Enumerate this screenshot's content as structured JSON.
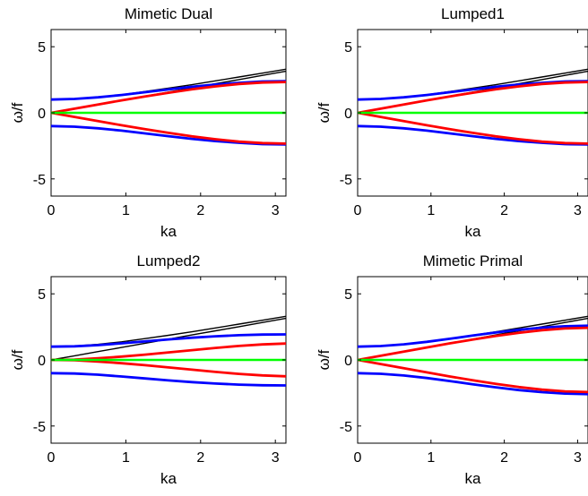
{
  "chart_data": [
    {
      "type": "line",
      "title": "Mimetic Dual",
      "xlabel": "ka",
      "ylabel": "ω/f",
      "xlim": [
        0,
        3.1416
      ],
      "ylim": [
        -6.3,
        6.3
      ],
      "xticks": [
        0,
        1,
        2,
        3
      ],
      "yticks": [
        -5,
        0,
        5
      ],
      "grid": false,
      "x": [
        0,
        0.314,
        0.628,
        0.942,
        1.257,
        1.571,
        1.885,
        2.199,
        2.513,
        2.827,
        3.142
      ],
      "series": [
        {
          "color": "#000000",
          "values": [
            1.0,
            1.05,
            1.18,
            1.37,
            1.61,
            1.86,
            2.13,
            2.42,
            2.71,
            3.0,
            3.3
          ]
        },
        {
          "color": "#000000",
          "values": [
            0,
            0.31,
            0.63,
            0.94,
            1.26,
            1.57,
            1.89,
            2.2,
            2.51,
            2.83,
            3.14
          ]
        },
        {
          "color": "#0000ff",
          "values": [
            1.0,
            1.05,
            1.17,
            1.35,
            1.56,
            1.77,
            1.97,
            2.14,
            2.27,
            2.37,
            2.4
          ]
        },
        {
          "color": "#0000ff",
          "values": [
            -1.0,
            -1.05,
            -1.17,
            -1.35,
            -1.56,
            -1.77,
            -1.97,
            -2.14,
            -2.27,
            -2.37,
            -2.4
          ]
        },
        {
          "color": "#ff0000",
          "values": [
            0,
            0.31,
            0.63,
            0.94,
            1.24,
            1.52,
            1.78,
            2.0,
            2.18,
            2.29,
            2.33
          ]
        },
        {
          "color": "#ff0000",
          "values": [
            0,
            -0.31,
            -0.63,
            -0.94,
            -1.24,
            -1.52,
            -1.78,
            -2.0,
            -2.18,
            -2.29,
            -2.33
          ]
        },
        {
          "color": "#00ff00",
          "values": [
            0,
            0,
            0,
            0,
            0,
            0,
            0,
            0,
            0,
            0,
            0
          ]
        }
      ]
    },
    {
      "type": "line",
      "title": "Lumped1",
      "xlabel": "ka",
      "ylabel": "ω/f",
      "xlim": [
        0,
        3.1416
      ],
      "ylim": [
        -6.3,
        6.3
      ],
      "xticks": [
        0,
        1,
        2,
        3
      ],
      "yticks": [
        -5,
        0,
        5
      ],
      "grid": false,
      "x": [
        0,
        0.314,
        0.628,
        0.942,
        1.257,
        1.571,
        1.885,
        2.199,
        2.513,
        2.827,
        3.142
      ],
      "series": [
        {
          "color": "#000000",
          "values": [
            1.0,
            1.05,
            1.18,
            1.37,
            1.61,
            1.86,
            2.13,
            2.42,
            2.71,
            3.0,
            3.3
          ]
        },
        {
          "color": "#000000",
          "values": [
            0,
            0.31,
            0.63,
            0.94,
            1.26,
            1.57,
            1.89,
            2.2,
            2.51,
            2.83,
            3.14
          ]
        },
        {
          "color": "#0000ff",
          "values": [
            1.0,
            1.05,
            1.17,
            1.35,
            1.56,
            1.77,
            1.97,
            2.14,
            2.27,
            2.37,
            2.4
          ]
        },
        {
          "color": "#0000ff",
          "values": [
            -1.0,
            -1.05,
            -1.17,
            -1.35,
            -1.56,
            -1.77,
            -1.97,
            -2.14,
            -2.27,
            -2.37,
            -2.4
          ]
        },
        {
          "color": "#ff0000",
          "values": [
            0,
            0.31,
            0.63,
            0.94,
            1.24,
            1.52,
            1.78,
            2.0,
            2.18,
            2.29,
            2.33
          ]
        },
        {
          "color": "#ff0000",
          "values": [
            0,
            -0.31,
            -0.63,
            -0.94,
            -1.24,
            -1.52,
            -1.78,
            -2.0,
            -2.18,
            -2.29,
            -2.33
          ]
        },
        {
          "color": "#00ff00",
          "values": [
            0,
            0,
            0,
            0,
            0,
            0,
            0,
            0,
            0,
            0,
            0
          ]
        }
      ]
    },
    {
      "type": "line",
      "title": "Lumped2",
      "xlabel": "ka",
      "ylabel": "ω/f",
      "xlim": [
        0,
        3.1416
      ],
      "ylim": [
        -6.3,
        6.3
      ],
      "xticks": [
        0,
        1,
        2,
        3
      ],
      "yticks": [
        -5,
        0,
        5
      ],
      "grid": false,
      "x": [
        0,
        0.314,
        0.628,
        0.942,
        1.257,
        1.571,
        1.885,
        2.199,
        2.513,
        2.827,
        3.142
      ],
      "series": [
        {
          "color": "#000000",
          "values": [
            1.0,
            1.05,
            1.18,
            1.37,
            1.61,
            1.86,
            2.13,
            2.42,
            2.71,
            3.0,
            3.3
          ]
        },
        {
          "color": "#000000",
          "values": [
            0,
            0.31,
            0.63,
            0.94,
            1.26,
            1.57,
            1.89,
            2.2,
            2.51,
            2.83,
            3.14
          ]
        },
        {
          "color": "#0000ff",
          "values": [
            1.0,
            1.03,
            1.12,
            1.25,
            1.4,
            1.55,
            1.68,
            1.79,
            1.87,
            1.92,
            1.93
          ]
        },
        {
          "color": "#0000ff",
          "values": [
            -1.0,
            -1.03,
            -1.12,
            -1.25,
            -1.4,
            -1.55,
            -1.68,
            -1.79,
            -1.87,
            -1.92,
            -1.93
          ]
        },
        {
          "color": "#ff0000",
          "values": [
            0,
            0.03,
            0.12,
            0.25,
            0.4,
            0.57,
            0.74,
            0.91,
            1.06,
            1.17,
            1.24
          ]
        },
        {
          "color": "#ff0000",
          "values": [
            0,
            -0.03,
            -0.12,
            -0.25,
            -0.4,
            -0.57,
            -0.74,
            -0.91,
            -1.06,
            -1.17,
            -1.24
          ]
        },
        {
          "color": "#00ff00",
          "values": [
            0,
            0,
            0,
            0,
            0,
            0,
            0,
            0,
            0,
            0,
            0
          ]
        }
      ]
    },
    {
      "type": "line",
      "title": "Mimetic Primal",
      "xlabel": "ka",
      "ylabel": "ω/f",
      "xlim": [
        0,
        3.1416
      ],
      "ylim": [
        -6.3,
        6.3
      ],
      "xticks": [
        0,
        1,
        2,
        3
      ],
      "yticks": [
        -5,
        0,
        5
      ],
      "grid": false,
      "x": [
        0,
        0.314,
        0.628,
        0.942,
        1.257,
        1.571,
        1.885,
        2.199,
        2.513,
        2.827,
        3.142
      ],
      "series": [
        {
          "color": "#000000",
          "values": [
            1.0,
            1.05,
            1.18,
            1.37,
            1.61,
            1.86,
            2.13,
            2.42,
            2.71,
            3.0,
            3.3
          ]
        },
        {
          "color": "#000000",
          "values": [
            0,
            0.31,
            0.63,
            0.94,
            1.26,
            1.57,
            1.89,
            2.2,
            2.51,
            2.83,
            3.14
          ]
        },
        {
          "color": "#0000ff",
          "values": [
            1.0,
            1.05,
            1.18,
            1.37,
            1.6,
            1.84,
            2.07,
            2.28,
            2.44,
            2.55,
            2.59
          ]
        },
        {
          "color": "#0000ff",
          "values": [
            -1.0,
            -1.05,
            -1.18,
            -1.37,
            -1.6,
            -1.84,
            -2.07,
            -2.28,
            -2.44,
            -2.55,
            -2.59
          ]
        },
        {
          "color": "#ff0000",
          "values": [
            0,
            0.31,
            0.63,
            0.94,
            1.25,
            1.54,
            1.81,
            2.05,
            2.25,
            2.38,
            2.43
          ]
        },
        {
          "color": "#ff0000",
          "values": [
            0,
            -0.31,
            -0.63,
            -0.94,
            -1.25,
            -1.54,
            -1.81,
            -2.05,
            -2.25,
            -2.38,
            -2.43
          ]
        },
        {
          "color": "#00ff00",
          "values": [
            0,
            0,
            0,
            0,
            0,
            0,
            0,
            0,
            0,
            0,
            0
          ]
        }
      ]
    }
  ]
}
